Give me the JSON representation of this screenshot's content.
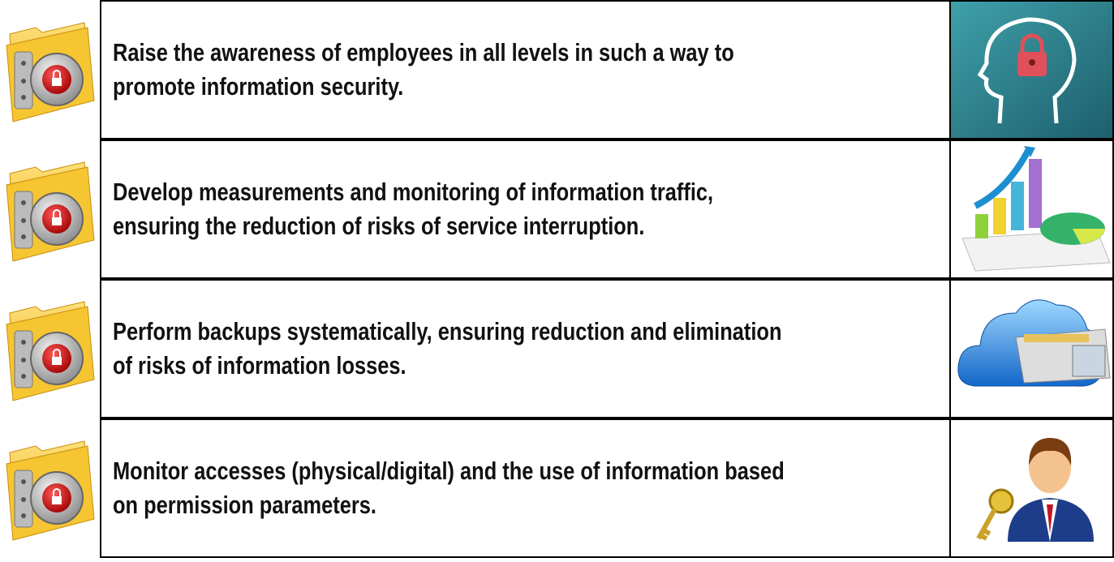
{
  "table": {
    "rows": [
      {
        "text": "Raise the awareness of employees in all levels in such a way to promote information security."
      },
      {
        "text": "Develop measurements and monitoring of information traffic, ensuring the reduction of risks of service interruption."
      },
      {
        "text": "Perform backups systematically, ensuring reduction and elimination of risks of information losses."
      },
      {
        "text": "Monitor accesses (physical/digital) and the use of information based on permission parameters."
      }
    ]
  }
}
